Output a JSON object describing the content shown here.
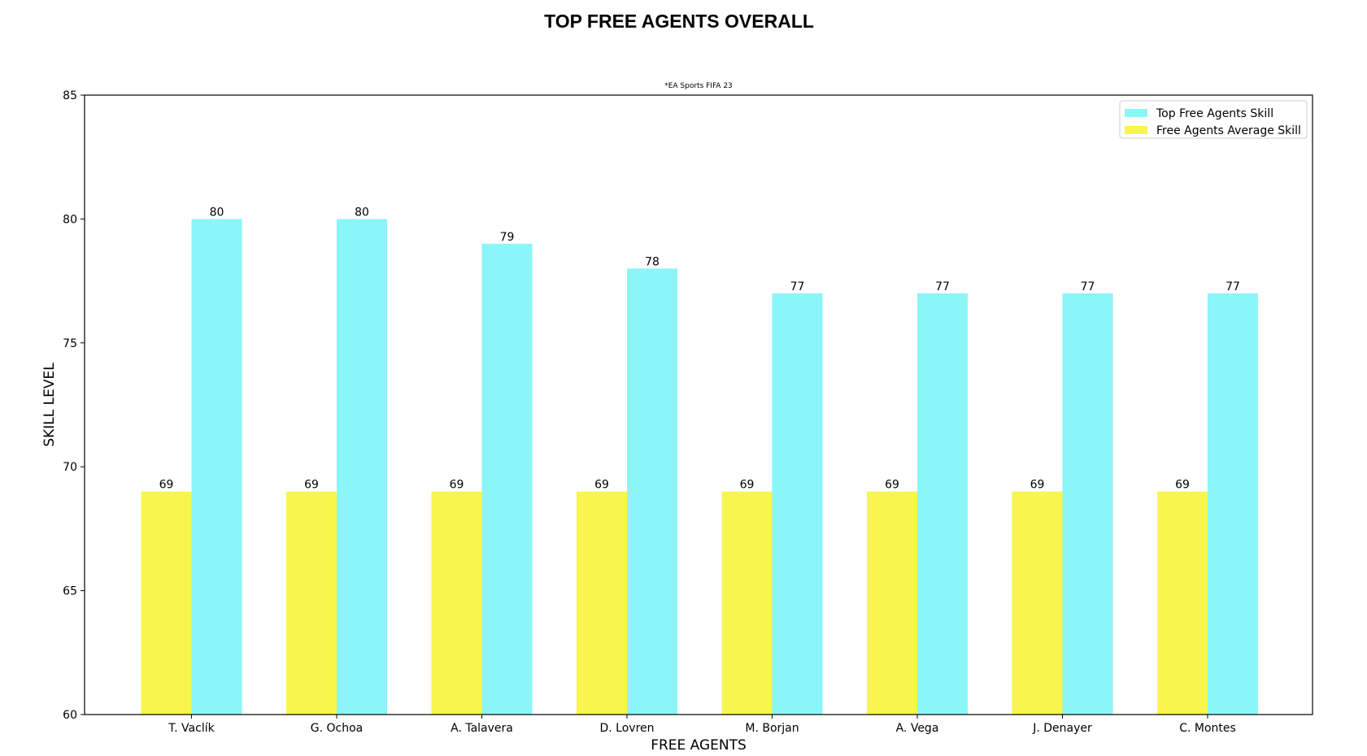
{
  "chart_data": {
    "type": "bar",
    "title": "TOP FREE AGENTS OVERALL",
    "subtitle": "*EA Sports FIFA 23",
    "xlabel": "FREE AGENTS",
    "ylabel": "SKILL LEVEL",
    "ylim": [
      60,
      85
    ],
    "yticks": [
      "60",
      "65",
      "70",
      "75",
      "80",
      "85"
    ],
    "grid": false,
    "legend_position": "top-right",
    "categories": [
      "T. Vaclík",
      "G. Ochoa",
      "A. Talavera",
      "D. Lovren",
      "M. Borjan",
      "A. Vega",
      "J. Denayer",
      "C. Montes"
    ],
    "series": [
      {
        "name": "Free Agents Average Skill",
        "color": "#f8f54c",
        "values": [
          69,
          69,
          69,
          69,
          69,
          69,
          69,
          69
        ],
        "labels": [
          "69",
          "69",
          "69",
          "69",
          "69",
          "69",
          "69",
          "69"
        ]
      },
      {
        "name": "Top Free Agents Skill",
        "color": "#8bf5f7",
        "values": [
          80,
          80,
          79,
          78,
          77,
          77,
          77,
          77
        ],
        "labels": [
          "80",
          "80",
          "79",
          "78",
          "77",
          "77",
          "77",
          "77"
        ]
      }
    ],
    "legend_order": [
      1,
      0
    ]
  }
}
